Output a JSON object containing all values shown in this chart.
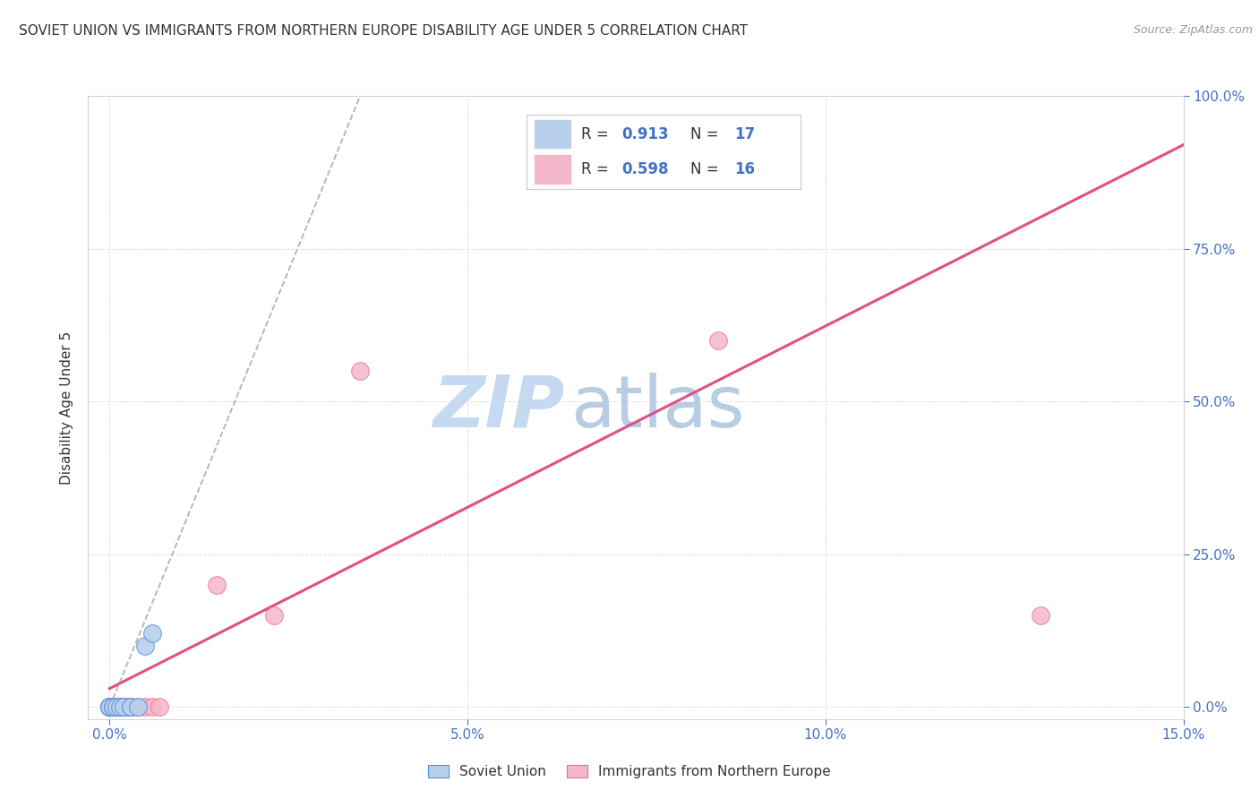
{
  "title": "SOVIET UNION VS IMMIGRANTS FROM NORTHERN EUROPE DISABILITY AGE UNDER 5 CORRELATION CHART",
  "source": "Source: ZipAtlas.com",
  "xlabel_ticks": [
    0.0,
    5.0,
    10.0,
    15.0
  ],
  "ylabel_ticks": [
    0.0,
    25.0,
    50.0,
    75.0,
    100.0
  ],
  "xlim": [
    -0.3,
    15.0
  ],
  "ylim": [
    -2.0,
    100.0
  ],
  "ylabel": "Disability Age Under 5",
  "soviet_union": {
    "color": "#b8d0eb",
    "edge_color": "#5b8dd9",
    "line_color": "#3a5ba0",
    "line_color2": "#6699cc",
    "R": 0.913,
    "N": 17,
    "label": "Soviet Union",
    "points_x": [
      0.0,
      0.0,
      0.0,
      0.0,
      0.0,
      0.0,
      0.0,
      0.05,
      0.05,
      0.1,
      0.15,
      0.2,
      0.3,
      0.3,
      0.4,
      0.5,
      0.6
    ],
    "points_y": [
      0.0,
      0.0,
      0.0,
      0.0,
      0.0,
      0.0,
      0.0,
      0.0,
      0.0,
      0.0,
      0.0,
      0.0,
      0.0,
      0.0,
      0.0,
      10.0,
      12.0
    ],
    "trend_x0": 0.0,
    "trend_x1": 3.5,
    "trend_y0": 0.0,
    "trend_y1": 100.0
  },
  "northern_europe": {
    "color": "#f5b8cb",
    "edge_color": "#e87090",
    "line_color": "#e05080",
    "R": 0.598,
    "N": 16,
    "label": "Immigrants from Northern Europe",
    "points_x": [
      0.0,
      0.05,
      0.1,
      0.15,
      0.2,
      0.25,
      0.3,
      0.4,
      0.5,
      0.6,
      0.7,
      1.5,
      2.3,
      3.5,
      8.5,
      13.0
    ],
    "points_y": [
      0.0,
      0.0,
      0.0,
      0.0,
      0.0,
      0.0,
      0.0,
      0.0,
      0.0,
      0.0,
      0.0,
      20.0,
      15.0,
      55.0,
      60.0,
      15.0
    ],
    "trend_x0": 0.0,
    "trend_x1": 15.0,
    "trend_y0": 3.0,
    "trend_y1": 92.0
  },
  "background_color": "#ffffff",
  "grid_color": "#dddddd",
  "title_fontsize": 11,
  "axis_label_color": "#333333",
  "right_axis_color": "#4472c4",
  "watermark_zip": "ZIP",
  "watermark_atlas": "atlas",
  "watermark_color_zip": "#c5daf0",
  "watermark_color_atlas": "#b8cce4"
}
